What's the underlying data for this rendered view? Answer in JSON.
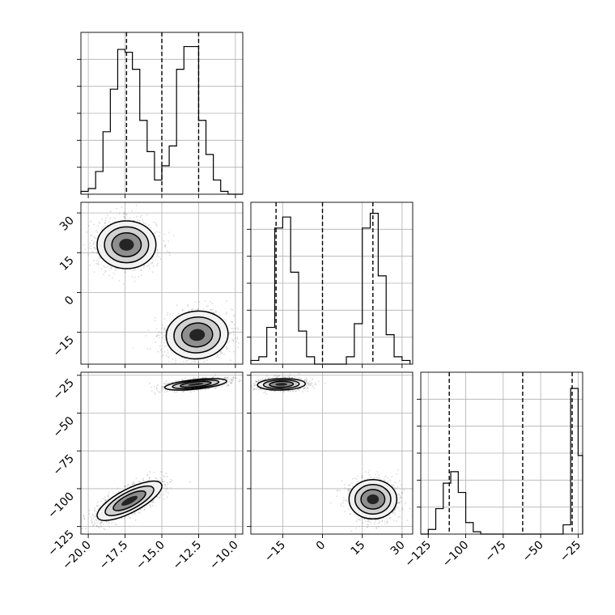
{
  "chart_data": [
    {
      "type": "histogram",
      "panel": "diag-0",
      "parameter_index": 0,
      "range": [
        -20.5,
        -9.5
      ],
      "grid": true,
      "bins": [
        -20.5,
        -20.0,
        -19.5,
        -19.0,
        -18.5,
        -18.0,
        -17.5,
        -17.0,
        -16.5,
        -16.0,
        -15.5,
        -15.0,
        -14.5,
        -14.0,
        -13.5,
        -13.0,
        -12.5,
        -12.0,
        -11.5,
        -11.0,
        -10.5,
        -10.0,
        -9.5
      ],
      "counts": [
        1,
        2,
        8,
        22,
        37,
        51,
        50,
        44,
        26,
        15,
        5,
        10,
        17,
        44,
        52,
        52,
        26,
        14,
        5,
        1,
        0,
        0
      ],
      "ymax": 57,
      "quantiles": [
        -17.4,
        -15.0,
        -12.5
      ]
    },
    {
      "type": "histogram",
      "panel": "diag-1",
      "parameter_index": 1,
      "range": [
        -27,
        34
      ],
      "grid": true,
      "bins": [
        -27,
        -24,
        -21,
        -18,
        -15,
        -12,
        -9,
        -6,
        -3,
        0,
        3,
        6,
        9,
        12,
        15,
        18,
        21,
        24,
        27,
        30,
        33
      ],
      "counts": [
        1,
        2,
        10,
        37,
        40,
        25,
        9,
        2,
        0,
        0,
        0,
        0,
        2,
        11,
        37,
        41,
        24,
        8,
        2,
        1
      ],
      "ymax": 44,
      "quantiles": [
        -17.5,
        0,
        19
      ]
    },
    {
      "type": "histogram",
      "panel": "diag-2",
      "parameter_index": 2,
      "range": [
        -130,
        -22
      ],
      "grid": true,
      "bins": [
        -130,
        -125,
        -120,
        -115,
        -110,
        -105,
        -100,
        -95,
        -90,
        -85,
        -80,
        -75,
        -70,
        -65,
        -60,
        -55,
        -50,
        -45,
        -40,
        -35,
        -30,
        -25,
        -22
      ],
      "counts": [
        0,
        2,
        11,
        22,
        27,
        18,
        5,
        1,
        0,
        0,
        0,
        0,
        0,
        0,
        0,
        0,
        0,
        0,
        0,
        4,
        63,
        34
      ],
      "ymax": 70,
      "quantiles": [
        -111,
        -62,
        -29
      ]
    },
    {
      "type": "scatter",
      "panel": "pair-1-0",
      "x_param": 0,
      "y_param": 1,
      "xlim": [
        -20.5,
        -9.5
      ],
      "ylim": [
        -27,
        34
      ],
      "grid": true,
      "clusters": [
        {
          "cx": -17.4,
          "cy": 18,
          "sx": 1.0,
          "sy": 4.5,
          "rho": 0.0,
          "n": 1400
        },
        {
          "cx": -12.6,
          "cy": -16,
          "sx": 1.05,
          "sy": 4.5,
          "rho": 0.05,
          "n": 1400
        }
      ],
      "contour_levels": [
        0.5,
        1.0,
        1.5,
        2.0
      ]
    },
    {
      "type": "scatter",
      "panel": "pair-2-0",
      "x_param": 0,
      "y_param": 2,
      "xlim": [
        -20.5,
        -9.5
      ],
      "ylim": [
        -130,
        -23
      ],
      "grid": true,
      "clusters": [
        {
          "cx": -17.2,
          "cy": -108,
          "sx": 1.1,
          "sy": 6.5,
          "rho": 0.75,
          "n": 1400
        },
        {
          "cx": -12.7,
          "cy": -31,
          "sx": 1.05,
          "sy": 1.9,
          "rho": 0.55,
          "n": 1400
        }
      ],
      "contour_levels": [
        0.5,
        1.0,
        1.5,
        2.0
      ]
    },
    {
      "type": "scatter",
      "panel": "pair-2-1",
      "x_param": 1,
      "y_param": 2,
      "xlim": [
        -27,
        34
      ],
      "ylim": [
        -130,
        -23
      ],
      "grid": true,
      "clusters": [
        {
          "cx": -15.5,
          "cy": -31,
          "sx": 4.5,
          "sy": 1.9,
          "rho": 0.1,
          "n": 1400
        },
        {
          "cx": 19,
          "cy": -107,
          "sx": 4.5,
          "sy": 6.5,
          "rho": 0.0,
          "n": 1400
        }
      ],
      "contour_levels": [
        0.5,
        1.0,
        1.5,
        2.0
      ]
    }
  ],
  "axes": {
    "x0_ticks": [
      -20.0,
      -17.5,
      -15.0,
      -12.5,
      -10.0
    ],
    "x0_tick_labels": [
      "−20.0",
      "−17.5",
      "−15.0",
      "−12.5",
      "−10.0"
    ],
    "x1_ticks": [
      -15,
      0,
      15,
      30
    ],
    "x1_tick_labels": [
      "−15",
      "0",
      "15",
      "30"
    ],
    "x2_ticks": [
      -125,
      -100,
      -75,
      -50,
      -25
    ],
    "x2_tick_labels": [
      "−125",
      "−100",
      "−75",
      "−50",
      "−25"
    ],
    "y1_ticks": [
      30,
      15,
      0,
      -15
    ],
    "y1_tick_labels": [
      "30",
      "15",
      "0",
      "−15"
    ],
    "y2_ticks": [
      -25,
      -50,
      -75,
      -100,
      -125
    ],
    "y2_tick_labels": [
      "−25",
      "−50",
      "−75",
      "−100",
      "−125"
    ]
  }
}
